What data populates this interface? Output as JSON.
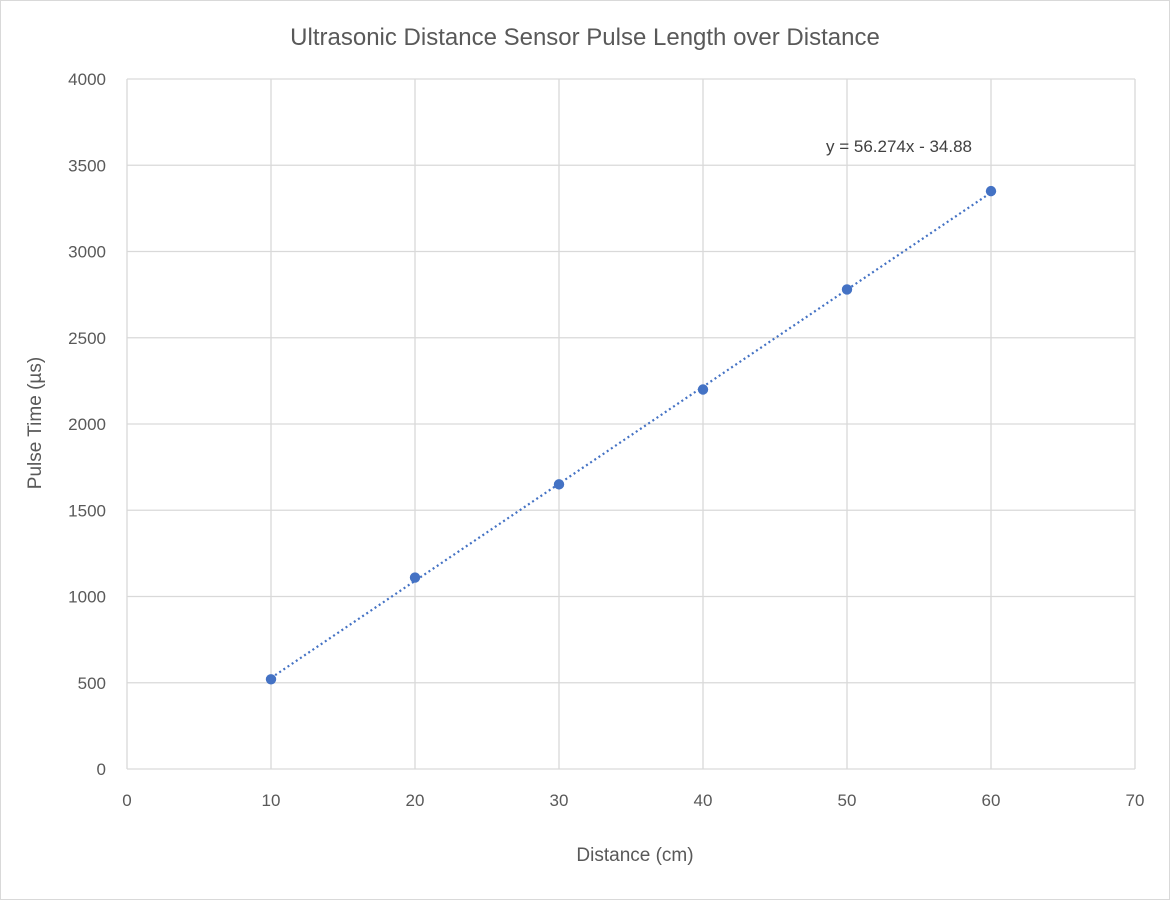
{
  "chart_data": {
    "type": "scatter",
    "title": "Ultrasonic Distance Sensor Pulse Length over Distance",
    "xlabel": "Distance (cm)",
    "ylabel": "Pulse Time (µs)",
    "xlim": [
      0,
      70
    ],
    "ylim": [
      0,
      4000
    ],
    "x_ticks": [
      "0",
      "10",
      "20",
      "30",
      "40",
      "50",
      "60",
      "70"
    ],
    "y_ticks": [
      "0",
      "500",
      "1000",
      "1500",
      "2000",
      "2500",
      "3000",
      "3500",
      "4000"
    ],
    "grid": true,
    "legend": "none",
    "series": [
      {
        "x": [
          10,
          20,
          30,
          40,
          50,
          60
        ],
        "y": [
          520,
          1110,
          1650,
          2200,
          2780,
          3350
        ],
        "color": "#4472c4"
      }
    ],
    "trendline": {
      "kind": "linear",
      "slope": 56.274,
      "intercept": -34.88,
      "x_range": [
        10,
        60
      ],
      "style": "dotted",
      "color": "#4472c4",
      "equation_label": "y = 56.274x - 34.88"
    }
  }
}
